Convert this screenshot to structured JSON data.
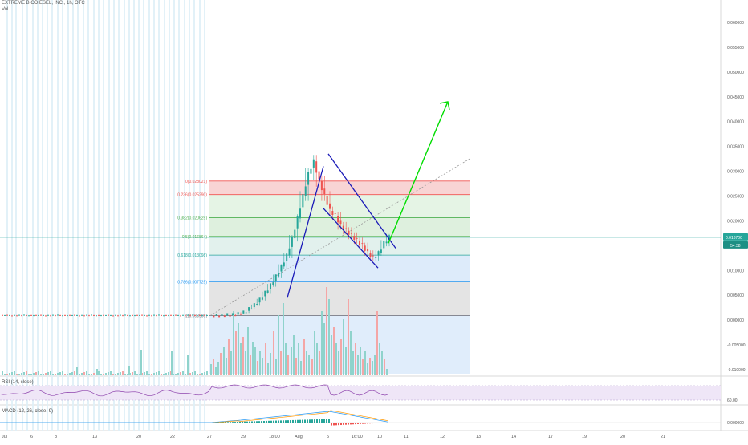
{
  "header": {
    "symbol_line": "EXTREME BIODIESEL, INC., 1h, OTC",
    "volume_label": "Vol"
  },
  "price_axis": {
    "ticks": [
      "0.060000",
      "0.055000",
      "0.050000",
      "0.045000",
      "0.040000",
      "0.035000",
      "0.030000",
      "0.025000",
      "0.020000",
      "0.015000",
      "0.010000",
      "0.005000",
      "0.000000",
      "-0.005000",
      "-0.010000"
    ],
    "current_price_label": "0.016700",
    "countdown_label": "54:38"
  },
  "time_axis": {
    "ticks": [
      "Jul",
      "6",
      "8",
      "13",
      "20",
      "22",
      "27",
      "29",
      "18:00",
      "Aug",
      "5",
      "16:00",
      "10",
      "11",
      "12",
      "13",
      "14",
      "17",
      "19",
      "20",
      "21"
    ]
  },
  "fibonacci": {
    "levels": [
      {
        "label": "0(0.028021)",
        "value": 0.028021
      },
      {
        "label": "0.236(0.025290)",
        "value": 0.02529
      },
      {
        "label": "0.382(0.020625)",
        "value": 0.020625
      },
      {
        "label": "0.5(0.016864)",
        "value": 0.016864
      },
      {
        "label": "0.618(0.013098)",
        "value": 0.013098
      },
      {
        "label": "0.786(0.007725)",
        "value": 0.007725
      },
      {
        "label": "1(0.000900)",
        "value": 0.0009
      }
    ],
    "colors": [
      "#ef5350",
      "#ef5350",
      "#4caf50",
      "#4caf50",
      "#26a69a",
      "#2196f3",
      "#787b86"
    ]
  },
  "rsi": {
    "label": "RSI (14, close)",
    "ticks": [
      "",
      ""
    ],
    "tick_60": "60.00"
  },
  "macd": {
    "label": "MACD (12, 26, close, 9)",
    "tick": "0.000000"
  },
  "colors": {
    "up": "#26a69a",
    "down": "#ef5350",
    "projection": "#00dd00",
    "channel": "#1a1ab8",
    "price_line": "#26a69a"
  },
  "chart_data": {
    "type": "candlestick",
    "title": "EXTREME BIODIESEL, INC., 1h, OTC",
    "y_range": [
      -0.0115,
      0.0625
    ],
    "close_series": [
      0.0009,
      0.0009,
      0.0009,
      0.001,
      0.001,
      0.0012,
      0.0015,
      0.0022,
      0.003,
      0.0041,
      0.0055,
      0.007,
      0.0088,
      0.0108,
      0.013,
      0.0165,
      0.0205,
      0.025,
      0.0295,
      0.032,
      0.028,
      0.025,
      0.022,
      0.021,
      0.019,
      0.018,
      0.017,
      0.016,
      0.015,
      0.0135,
      0.0125,
      0.0135,
      0.0155,
      0.0167
    ],
    "projection_target": 0.044,
    "last_price": 0.0167
  }
}
